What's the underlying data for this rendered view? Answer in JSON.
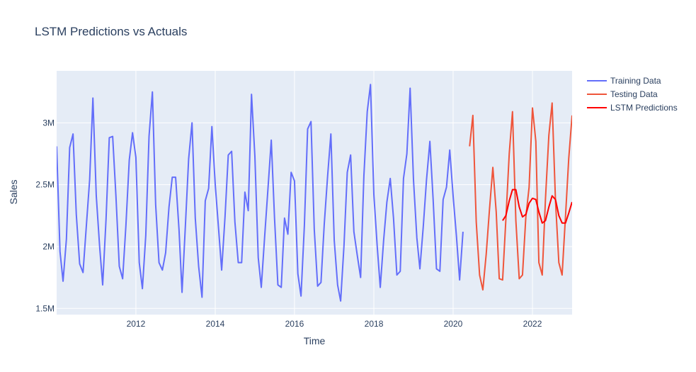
{
  "chart_data": {
    "type": "line",
    "title": "LSTM Predictions vs Actuals",
    "xlabel": "Time",
    "ylabel": "Sales",
    "x_range": [
      "2010-01-01",
      "2023-01-01"
    ],
    "ylim": [
      1450000,
      3420000
    ],
    "x_ticks": [
      "2012-01-01",
      "2014-01-01",
      "2016-01-01",
      "2018-01-01",
      "2020-01-01",
      "2022-01-01"
    ],
    "x_tick_labels": [
      "2012",
      "2014",
      "2016",
      "2018",
      "2020",
      "2022"
    ],
    "y_ticks": [
      1500000,
      2000000,
      2500000,
      3000000
    ],
    "y_tick_labels": [
      "1.5M",
      "2M",
      "2.5M",
      "3M"
    ],
    "grid": true,
    "legend_position": "top-right",
    "plot_bg": "#e5ecf6",
    "series": [
      {
        "name": "Training Data",
        "color": "#636efa",
        "x": [
          "2010-01-01",
          "2010-02-01",
          "2010-03-01",
          "2010-04-01",
          "2010-05-01",
          "2010-06-01",
          "2010-07-01",
          "2010-08-01",
          "2010-09-01",
          "2010-10-01",
          "2010-11-01",
          "2010-12-01",
          "2011-01-01",
          "2011-02-01",
          "2011-03-01",
          "2011-04-01",
          "2011-05-01",
          "2011-06-01",
          "2011-07-01",
          "2011-08-01",
          "2011-09-01",
          "2011-10-01",
          "2011-11-01",
          "2011-12-01",
          "2012-01-01",
          "2012-02-01",
          "2012-03-01",
          "2012-04-01",
          "2012-05-01",
          "2012-06-01",
          "2012-07-01",
          "2012-08-01",
          "2012-09-01",
          "2012-10-01",
          "2012-11-01",
          "2012-12-01",
          "2013-01-01",
          "2013-02-01",
          "2013-03-01",
          "2013-04-01",
          "2013-05-01",
          "2013-06-01",
          "2013-07-01",
          "2013-08-01",
          "2013-09-01",
          "2013-10-01",
          "2013-11-01",
          "2013-12-01",
          "2014-01-01",
          "2014-02-01",
          "2014-03-01",
          "2014-04-01",
          "2014-05-01",
          "2014-06-01",
          "2014-07-01",
          "2014-08-01",
          "2014-09-01",
          "2014-10-01",
          "2014-11-01",
          "2014-12-01",
          "2015-01-01",
          "2015-02-01",
          "2015-03-01",
          "2015-04-01",
          "2015-05-01",
          "2015-06-01",
          "2015-07-01",
          "2015-08-01",
          "2015-09-01",
          "2015-10-01",
          "2015-11-01",
          "2015-12-01",
          "2016-01-01",
          "2016-02-01",
          "2016-03-01",
          "2016-04-01",
          "2016-05-01",
          "2016-06-01",
          "2016-07-01",
          "2016-08-01",
          "2016-09-01",
          "2016-10-01",
          "2016-11-01",
          "2016-12-01",
          "2017-01-01",
          "2017-02-01",
          "2017-03-01",
          "2017-04-01",
          "2017-05-01",
          "2017-06-01",
          "2017-07-01",
          "2017-08-01",
          "2017-09-01",
          "2017-10-01",
          "2017-11-01",
          "2017-12-01",
          "2018-01-01",
          "2018-02-01",
          "2018-03-01",
          "2018-04-01",
          "2018-05-01",
          "2018-06-01",
          "2018-07-01",
          "2018-08-01",
          "2018-09-01",
          "2018-10-01",
          "2018-11-01",
          "2018-12-01",
          "2019-01-01",
          "2019-02-01",
          "2019-03-01",
          "2019-04-01",
          "2019-05-01",
          "2019-06-01",
          "2019-07-01",
          "2019-08-01",
          "2019-09-01",
          "2019-10-01",
          "2019-11-01",
          "2019-12-01",
          "2020-01-01",
          "2020-02-01",
          "2020-03-01",
          "2020-04-01",
          "2020-05-01"
        ],
        "y": [
          2810000,
          1960000,
          1720000,
          2060000,
          2800000,
          2910000,
          2260000,
          1860000,
          1790000,
          2160000,
          2540000,
          3200000,
          2410000,
          2000000,
          1690000,
          2220000,
          2880000,
          2890000,
          2410000,
          1840000,
          1740000,
          2170000,
          2700000,
          2920000,
          2720000,
          1870000,
          1660000,
          2090000,
          2890000,
          3250000,
          2340000,
          1870000,
          1810000,
          1950000,
          2320000,
          2560000,
          2560000,
          2140000,
          1630000,
          2170000,
          2710000,
          3000000,
          2230000,
          1840000,
          1590000,
          2370000,
          2470000,
          2970000,
          2500000,
          2140000,
          1810000,
          2240000,
          2740000,
          2770000,
          2200000,
          1870000,
          1870000,
          2440000,
          2290000,
          3230000,
          2730000,
          1910000,
          1670000,
          2080000,
          2460000,
          2860000,
          2230000,
          1690000,
          1670000,
          2230000,
          2100000,
          2600000,
          2530000,
          1780000,
          1600000,
          2170000,
          2950000,
          3010000,
          2140000,
          1680000,
          1710000,
          2180000,
          2570000,
          2910000,
          2050000,
          1690000,
          1560000,
          2010000,
          2600000,
          2740000,
          2120000,
          1930000,
          1750000,
          2570000,
          3090000,
          3310000,
          2420000,
          2000000,
          1670000,
          2050000,
          2360000,
          2550000,
          2230000,
          1770000,
          1800000,
          2550000,
          2750000,
          3280000,
          2540000,
          2070000,
          1820000,
          2160000,
          2540000,
          2850000,
          2380000,
          1820000,
          1800000,
          2380000,
          2480000,
          2780000,
          2410000,
          2080000,
          1730000,
          2120000,
          null
        ]
      },
      {
        "name": "Testing Data",
        "color": "#ef553b",
        "x": [
          "2020-06-01",
          "2020-07-01",
          "2020-08-01",
          "2020-09-01",
          "2020-10-01",
          "2020-11-01",
          "2020-12-01",
          "2021-01-01",
          "2021-02-01",
          "2021-03-01",
          "2021-04-01",
          "2021-05-01",
          "2021-06-01",
          "2021-07-01",
          "2021-08-01",
          "2021-09-01",
          "2021-10-01",
          "2021-11-01",
          "2021-12-01",
          "2022-01-01",
          "2022-02-01",
          "2022-03-01",
          "2022-04-01",
          "2022-05-01",
          "2022-06-01",
          "2022-07-01",
          "2022-08-01",
          "2022-09-01",
          "2022-10-01",
          "2022-11-01",
          "2022-12-01",
          "2023-01-01"
        ],
        "y": [
          2810000,
          3060000,
          2200000,
          1770000,
          1650000,
          1940000,
          2300000,
          2640000,
          2280000,
          1740000,
          1730000,
          2220000,
          2750000,
          3090000,
          2210000,
          1740000,
          1770000,
          2240000,
          2480000,
          3120000,
          2850000,
          1870000,
          1770000,
          2390000,
          2900000,
          3160000,
          2370000,
          1870000,
          1770000,
          2240000,
          2710000,
          3060000
        ]
      },
      {
        "name": "LSTM Predictions",
        "color": "#ff0000",
        "x": [
          "2021-04-01",
          "2021-05-01",
          "2021-06-01",
          "2021-07-01",
          "2021-08-01",
          "2021-09-01",
          "2021-10-01",
          "2021-11-01",
          "2021-12-01",
          "2022-01-01",
          "2022-02-01",
          "2022-03-01",
          "2022-04-01",
          "2022-05-01",
          "2022-06-01",
          "2022-07-01",
          "2022-08-01",
          "2022-09-01",
          "2022-10-01",
          "2022-11-01",
          "2022-12-01",
          "2023-01-01"
        ],
        "y": [
          2210000,
          2250000,
          2370000,
          2460000,
          2460000,
          2320000,
          2240000,
          2260000,
          2350000,
          2390000,
          2380000,
          2280000,
          2190000,
          2210000,
          2320000,
          2410000,
          2380000,
          2250000,
          2190000,
          2190000,
          2270000,
          2360000
        ]
      }
    ]
  }
}
